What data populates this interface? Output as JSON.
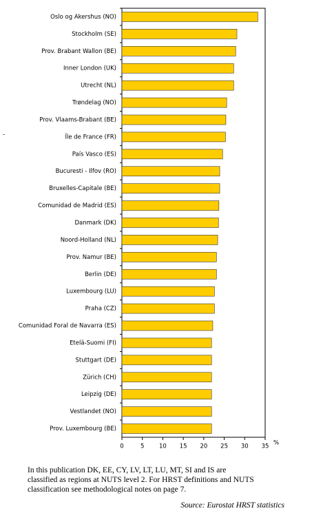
{
  "chart_data": {
    "type": "bar",
    "orientation": "horizontal",
    "categories": [
      "Oslo og Akershus (NO)",
      "Stockholm (SE)",
      "Prov. Brabant Wallon (BE)",
      "Inner London (UK)",
      "Utrecht (NL)",
      "Trøndelag (NO)",
      "Prov. Vlaams-Brabant (BE)",
      "Île de France (FR)",
      "País Vasco (ES)",
      "Bucuresti - Ilfov (RO)",
      "Bruxelles-Capitale (BE)",
      "Comunidad de Madrid (ES)",
      "Danmark (DK)",
      "Noord-Holland (NL)",
      "Prov. Namur (BE)",
      "Berlin (DE)",
      "Luxembourg (LU)",
      "Praha (CZ)",
      "Comunidad Foral de Navarra (ES)",
      "Etelä-Suomi (FI)",
      "Stuttgart (DE)",
      "Zürich (CH)",
      "Leipzig (DE)",
      "Vestlandet (NO)",
      "Prov. Luxembourg (BE)"
    ],
    "values": [
      33.2,
      28.1,
      27.8,
      27.3,
      27.3,
      25.6,
      25.4,
      25.3,
      24.6,
      23.9,
      23.9,
      23.7,
      23.6,
      23.4,
      23.1,
      23.1,
      22.6,
      22.6,
      22.2,
      21.9,
      21.9,
      21.9,
      21.9,
      21.9,
      21.9
    ],
    "color": "#ffcc00",
    "xlim": [
      0,
      35
    ],
    "xticks": [
      0,
      5,
      10,
      15,
      20,
      25,
      30,
      35
    ],
    "x_unit": "%",
    "grid": false
  },
  "margin_mark": "-",
  "note_lines": [
    "In this publication DK, EE, CY, LV, LT, LU, MT, SI and IS are",
    "classified as regions at NUTS level 2. For HRST definitions and NUTS",
    "classification see methodological notes on page 7."
  ],
  "source": "Source: Eurostat HRST statistics"
}
